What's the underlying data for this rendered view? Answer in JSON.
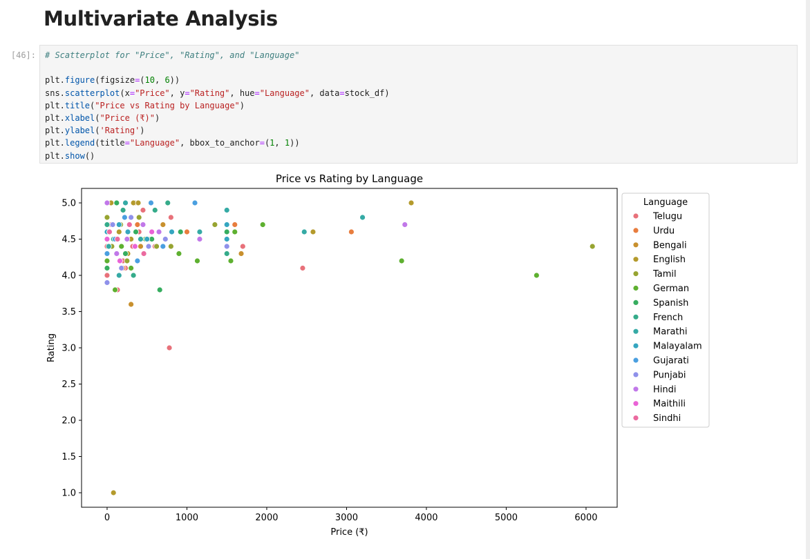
{
  "notebook": {
    "heading": "Multivariate Analysis",
    "cell_prompt": "[46]:",
    "code_lines": [
      [
        {
          "t": "# Scatterplot for \"Price\", \"Rating\", and \"Language\"",
          "c": "com"
        }
      ],
      [],
      [
        {
          "t": "plt.",
          "c": ""
        },
        {
          "t": "figure",
          "c": "attr"
        },
        {
          "t": "(figsize",
          "c": ""
        },
        {
          "t": "=",
          "c": "op"
        },
        {
          "t": "(",
          "c": ""
        },
        {
          "t": "10",
          "c": "num"
        },
        {
          "t": ", ",
          "c": ""
        },
        {
          "t": "6",
          "c": "num"
        },
        {
          "t": "))",
          "c": ""
        }
      ],
      [
        {
          "t": "sns.",
          "c": ""
        },
        {
          "t": "scatterplot",
          "c": "attr"
        },
        {
          "t": "(x",
          "c": ""
        },
        {
          "t": "=",
          "c": "op"
        },
        {
          "t": "\"Price\"",
          "c": "str"
        },
        {
          "t": ", y",
          "c": ""
        },
        {
          "t": "=",
          "c": "op"
        },
        {
          "t": "\"Rating\"",
          "c": "str"
        },
        {
          "t": ", hue",
          "c": ""
        },
        {
          "t": "=",
          "c": "op"
        },
        {
          "t": "\"Language\"",
          "c": "str"
        },
        {
          "t": ", data",
          "c": ""
        },
        {
          "t": "=",
          "c": "op"
        },
        {
          "t": "stock_df)",
          "c": ""
        }
      ],
      [
        {
          "t": "plt.",
          "c": ""
        },
        {
          "t": "title",
          "c": "attr"
        },
        {
          "t": "(",
          "c": ""
        },
        {
          "t": "\"Price vs Rating by Language\"",
          "c": "str"
        },
        {
          "t": ")",
          "c": ""
        }
      ],
      [
        {
          "t": "plt.",
          "c": ""
        },
        {
          "t": "xlabel",
          "c": "attr"
        },
        {
          "t": "(",
          "c": ""
        },
        {
          "t": "\"Price (₹)\"",
          "c": "str"
        },
        {
          "t": ")",
          "c": ""
        }
      ],
      [
        {
          "t": "plt.",
          "c": ""
        },
        {
          "t": "ylabel",
          "c": "attr"
        },
        {
          "t": "(",
          "c": ""
        },
        {
          "t": "'Rating'",
          "c": "str"
        },
        {
          "t": ")",
          "c": ""
        }
      ],
      [
        {
          "t": "plt.",
          "c": ""
        },
        {
          "t": "legend",
          "c": "attr"
        },
        {
          "t": "(title",
          "c": ""
        },
        {
          "t": "=",
          "c": "op"
        },
        {
          "t": "\"Language\"",
          "c": "str"
        },
        {
          "t": ", bbox_to_anchor",
          "c": ""
        },
        {
          "t": "=",
          "c": "op"
        },
        {
          "t": "(",
          "c": ""
        },
        {
          "t": "1",
          "c": "num"
        },
        {
          "t": ", ",
          "c": ""
        },
        {
          "t": "1",
          "c": "num"
        },
        {
          "t": "))",
          "c": ""
        }
      ],
      [
        {
          "t": "plt.",
          "c": ""
        },
        {
          "t": "show",
          "c": "attr"
        },
        {
          "t": "()",
          "c": ""
        }
      ]
    ]
  },
  "chart_data": {
    "type": "scatter",
    "title": "Price vs Rating by Language",
    "xlabel": "Price (₹)",
    "ylabel": "Rating",
    "xlim": [
      -320,
      6390
    ],
    "ylim": [
      0.8,
      5.2
    ],
    "xticks": [
      0,
      1000,
      2000,
      3000,
      4000,
      5000,
      6000
    ],
    "yticks": [
      1.0,
      1.5,
      2.0,
      2.5,
      3.0,
      3.5,
      4.0,
      4.5,
      5.0
    ],
    "grid": false,
    "legend_title": "Language",
    "legend_placement": "outside-top-right",
    "series": [
      {
        "name": "Telugu",
        "color": "#e8717a",
        "points": [
          [
            0,
            4.0
          ],
          [
            0,
            4.4
          ],
          [
            50,
            4.7
          ],
          [
            100,
            4.5
          ],
          [
            130,
            3.8
          ],
          [
            200,
            4.2
          ],
          [
            230,
            4.1
          ],
          [
            260,
            4.6
          ],
          [
            320,
            4.4
          ],
          [
            400,
            4.6
          ],
          [
            450,
            4.9
          ],
          [
            520,
            4.5
          ],
          [
            600,
            4.4
          ],
          [
            800,
            4.8
          ],
          [
            1700,
            4.4
          ],
          [
            2450,
            4.1
          ],
          [
            780,
            3.0
          ]
        ]
      },
      {
        "name": "Urdu",
        "color": "#e87d3e",
        "points": [
          [
            200,
            4.1
          ],
          [
            380,
            4.7
          ],
          [
            1000,
            4.6
          ],
          [
            1600,
            4.7
          ],
          [
            3060,
            4.6
          ]
        ]
      },
      {
        "name": "Bengali",
        "color": "#c8902e",
        "points": [
          [
            300,
            3.6
          ],
          [
            350,
            5.0
          ],
          [
            420,
            4.4
          ],
          [
            700,
            4.7
          ],
          [
            1680,
            4.3
          ]
        ]
      },
      {
        "name": "English",
        "color": "#b49a2c",
        "points": [
          [
            50,
            5.0
          ],
          [
            80,
            1.0
          ],
          [
            150,
            4.6
          ],
          [
            260,
            4.3
          ],
          [
            300,
            4.5
          ],
          [
            330,
            5.0
          ],
          [
            390,
            5.0
          ],
          [
            2580,
            4.6
          ],
          [
            3810,
            5.0
          ]
        ]
      },
      {
        "name": "Tamil",
        "color": "#97a431",
        "points": [
          [
            0,
            4.8
          ],
          [
            60,
            4.4
          ],
          [
            170,
            4.7
          ],
          [
            250,
            4.2
          ],
          [
            400,
            4.8
          ],
          [
            620,
            4.4
          ],
          [
            800,
            4.4
          ],
          [
            1350,
            4.7
          ],
          [
            6080,
            4.4
          ]
        ]
      },
      {
        "name": "German",
        "color": "#5eb030",
        "points": [
          [
            0,
            4.2
          ],
          [
            100,
            3.8
          ],
          [
            180,
            4.4
          ],
          [
            300,
            4.1
          ],
          [
            480,
            4.5
          ],
          [
            900,
            4.3
          ],
          [
            1130,
            4.2
          ],
          [
            1550,
            4.2
          ],
          [
            1600,
            4.6
          ],
          [
            1950,
            4.7
          ],
          [
            3690,
            4.2
          ],
          [
            5380,
            4.0
          ]
        ]
      },
      {
        "name": "Spanish",
        "color": "#36ad5f",
        "points": [
          [
            0,
            4.1
          ],
          [
            120,
            5.0
          ],
          [
            230,
            4.3
          ],
          [
            360,
            4.6
          ],
          [
            560,
            4.5
          ],
          [
            660,
            3.8
          ],
          [
            920,
            4.6
          ],
          [
            1500,
            4.6
          ]
        ]
      },
      {
        "name": "French",
        "color": "#35ab8a",
        "points": [
          [
            0,
            4.7
          ],
          [
            80,
            4.5
          ],
          [
            200,
            4.9
          ],
          [
            330,
            4.0
          ],
          [
            600,
            4.9
          ],
          [
            760,
            5.0
          ],
          [
            1500,
            4.3
          ]
        ]
      },
      {
        "name": "Marathi",
        "color": "#35aaa5",
        "points": [
          [
            20,
            4.4
          ],
          [
            150,
            4.0
          ],
          [
            230,
            5.0
          ],
          [
            420,
            4.5
          ],
          [
            1160,
            4.6
          ],
          [
            1500,
            4.9
          ],
          [
            2470,
            4.6
          ],
          [
            3200,
            4.8
          ]
        ]
      },
      {
        "name": "Malayalam",
        "color": "#35a6c0",
        "points": [
          [
            0,
            4.6
          ],
          [
            150,
            4.7
          ],
          [
            260,
            4.6
          ],
          [
            500,
            4.5
          ],
          [
            810,
            4.6
          ],
          [
            1500,
            4.7
          ],
          [
            1500,
            4.5
          ]
        ]
      },
      {
        "name": "Gujarati",
        "color": "#4a9fe0",
        "points": [
          [
            0,
            4.3
          ],
          [
            100,
            4.5
          ],
          [
            220,
            4.8
          ],
          [
            380,
            4.2
          ],
          [
            550,
            5.0
          ],
          [
            700,
            4.4
          ],
          [
            1100,
            5.0
          ]
        ]
      },
      {
        "name": "Punjabi",
        "color": "#8f91ea",
        "points": [
          [
            0,
            3.9
          ],
          [
            70,
            4.7
          ],
          [
            180,
            4.1
          ],
          [
            300,
            4.8
          ],
          [
            520,
            4.4
          ],
          [
            730,
            4.5
          ],
          [
            1500,
            4.4
          ]
        ]
      },
      {
        "name": "Hindi",
        "color": "#c178e9",
        "points": [
          [
            0,
            5.0
          ],
          [
            120,
            4.3
          ],
          [
            250,
            4.5
          ],
          [
            450,
            4.7
          ],
          [
            650,
            4.6
          ],
          [
            1160,
            4.5
          ],
          [
            3730,
            4.7
          ]
        ]
      },
      {
        "name": "Maithili",
        "color": "#ea63d6",
        "points": [
          [
            0,
            4.5
          ],
          [
            160,
            4.2
          ],
          [
            350,
            4.4
          ],
          [
            560,
            4.6
          ]
        ]
      },
      {
        "name": "Sindhi",
        "color": "#eb6a9f",
        "points": [
          [
            30,
            4.6
          ],
          [
            130,
            4.5
          ],
          [
            280,
            4.7
          ],
          [
            460,
            4.3
          ]
        ]
      }
    ]
  }
}
